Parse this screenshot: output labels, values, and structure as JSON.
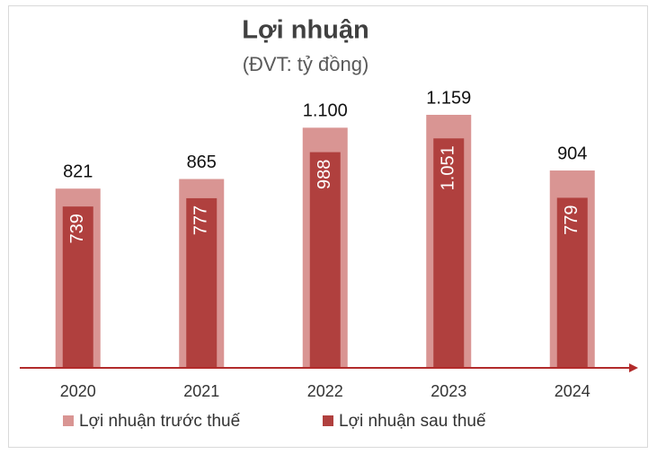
{
  "chart_data": {
    "type": "bar",
    "title": "Lợi nhuận",
    "subtitle": "(ĐVT: tỷ đồng)",
    "categories": [
      "2020",
      "2021",
      "2022",
      "2023",
      "2024"
    ],
    "series": [
      {
        "name": "Lợi nhuận trước thuế",
        "color": "#d99593",
        "values": [
          821,
          865,
          1100,
          1159,
          904
        ],
        "value_labels": [
          "821",
          "865",
          "1.100",
          "1.159",
          "904"
        ]
      },
      {
        "name": "Lợi nhuận sau thuế",
        "color": "#b0403e",
        "values": [
          739,
          777,
          988,
          1051,
          779
        ],
        "value_labels": [
          "739",
          "777",
          "988",
          "1.051",
          "779"
        ]
      }
    ],
    "ylim": [
      0,
      1200
    ]
  }
}
